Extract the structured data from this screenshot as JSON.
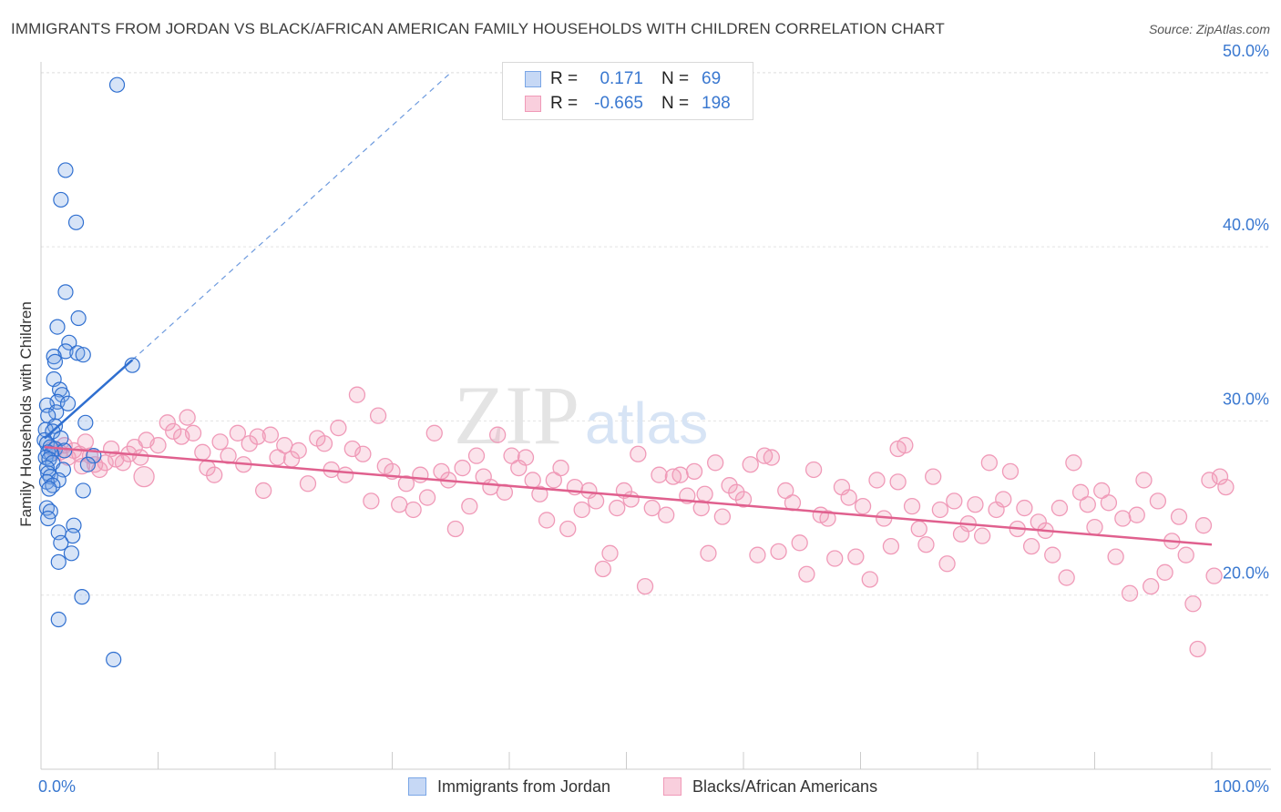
{
  "title": "IMMIGRANTS FROM JORDAN VS BLACK/AFRICAN AMERICAN FAMILY HOUSEHOLDS WITH CHILDREN CORRELATION CHART",
  "source": "Source: ZipAtlas.com",
  "watermark": {
    "zip": "ZIP",
    "atlas": "atlas"
  },
  "legend": {
    "rows": [
      {
        "r_label": "R =",
        "r_value": "0.171",
        "n_label": "N =",
        "n_value": "69",
        "color": "#7aa6e6"
      },
      {
        "r_label": "R =",
        "r_value": "-0.665",
        "n_label": "N =",
        "n_value": "198",
        "color": "#f09ab8"
      }
    ]
  },
  "bottom_legend": {
    "series_a": "Immigrants from Jordan",
    "series_b": "Blacks/African Americans"
  },
  "chart_data": {
    "type": "scatter",
    "title": "IMMIGRANTS FROM JORDAN VS BLACK/AFRICAN AMERICAN FAMILY HOUSEHOLDS WITH CHILDREN CORRELATION CHART",
    "xlabel": "",
    "ylabel": "Family Households with Children",
    "xlim": [
      0,
      100
    ],
    "ylim": [
      10,
      52
    ],
    "x_tick_labels": [
      "0.0%",
      "100.0%"
    ],
    "y_ticks": [
      20,
      30,
      40,
      50
    ],
    "y_tick_labels": [
      "20.0%",
      "30.0%",
      "40.0%",
      "50.0%"
    ],
    "colors": {
      "jordan": "#7aa6e6",
      "jordan_line": "#2f6fd0",
      "black": "#f09ab8",
      "black_line": "#e0608e"
    },
    "series": [
      {
        "name": "Immigrants from Jordan",
        "R": 0.171,
        "N": 69,
        "trend": {
          "x0": 0.3,
          "y0": 29.0,
          "x1": 7.8,
          "y1": 33.5,
          "dash_to_x": 35,
          "dash_to_y": 50.0
        },
        "points": [
          [
            6.5,
            49.3
          ],
          [
            2.1,
            44.4
          ],
          [
            1.7,
            42.7
          ],
          [
            3.0,
            41.4
          ],
          [
            2.1,
            37.4
          ],
          [
            3.2,
            35.9
          ],
          [
            1.4,
            35.4
          ],
          [
            2.4,
            34.5
          ],
          [
            2.1,
            34.0
          ],
          [
            3.1,
            33.9
          ],
          [
            3.6,
            33.8
          ],
          [
            1.1,
            33.7
          ],
          [
            1.2,
            33.4
          ],
          [
            7.8,
            33.2
          ],
          [
            1.1,
            32.4
          ],
          [
            1.6,
            31.8
          ],
          [
            1.8,
            31.5
          ],
          [
            1.4,
            31.1
          ],
          [
            2.3,
            31.0
          ],
          [
            0.5,
            30.9
          ],
          [
            1.3,
            30.5
          ],
          [
            0.6,
            30.3
          ],
          [
            3.8,
            29.9
          ],
          [
            1.2,
            29.7
          ],
          [
            0.4,
            29.5
          ],
          [
            1.0,
            29.4
          ],
          [
            1.7,
            29.0
          ],
          [
            0.3,
            28.9
          ],
          [
            0.5,
            28.7
          ],
          [
            0.8,
            28.5
          ],
          [
            1.2,
            28.4
          ],
          [
            2.0,
            28.3
          ],
          [
            0.6,
            28.2
          ],
          [
            0.9,
            28.1
          ],
          [
            4.5,
            28.0
          ],
          [
            0.4,
            27.9
          ],
          [
            0.7,
            27.8
          ],
          [
            1.0,
            27.6
          ],
          [
            4.0,
            27.5
          ],
          [
            0.5,
            27.3
          ],
          [
            1.9,
            27.2
          ],
          [
            0.6,
            27.0
          ],
          [
            0.8,
            26.8
          ],
          [
            1.5,
            26.6
          ],
          [
            0.5,
            26.5
          ],
          [
            1.0,
            26.3
          ],
          [
            0.7,
            26.1
          ],
          [
            3.6,
            26.0
          ],
          [
            0.5,
            25.0
          ],
          [
            0.8,
            24.8
          ],
          [
            0.6,
            24.4
          ],
          [
            2.8,
            24.0
          ],
          [
            1.5,
            23.6
          ],
          [
            2.7,
            23.4
          ],
          [
            1.7,
            23.0
          ],
          [
            2.6,
            22.4
          ],
          [
            1.5,
            21.9
          ],
          [
            3.5,
            19.9
          ],
          [
            1.5,
            18.6
          ],
          [
            6.2,
            16.3
          ]
        ]
      },
      {
        "name": "Blacks/African Americans",
        "R": -0.665,
        "N": 198,
        "trend": {
          "x0": 0.3,
          "y0": 28.5,
          "x1": 100,
          "y1": 22.9
        },
        "points": [
          [
            1.0,
            28.4
          ],
          [
            1.6,
            28.2
          ],
          [
            2.0,
            28.6
          ],
          [
            2.3,
            27.9
          ],
          [
            2.8,
            28.3
          ],
          [
            3.3,
            28.1
          ],
          [
            3.8,
            28.8
          ],
          [
            4.2,
            28.0
          ],
          [
            4.6,
            27.5
          ],
          [
            5.0,
            27.2
          ],
          [
            5.5,
            27.6
          ],
          [
            6.0,
            28.4
          ],
          [
            6.4,
            27.8
          ],
          [
            7.0,
            27.6
          ],
          [
            7.5,
            28.1
          ],
          [
            8.0,
            28.5
          ],
          [
            8.5,
            27.9
          ],
          [
            9.0,
            28.9
          ],
          [
            8.8,
            26.8
          ],
          [
            10.0,
            28.6
          ],
          [
            10.8,
            29.9
          ],
          [
            11.3,
            29.4
          ],
          [
            12.0,
            29.1
          ],
          [
            12.5,
            30.2
          ],
          [
            13.0,
            29.3
          ],
          [
            13.8,
            28.2
          ],
          [
            14.2,
            27.3
          ],
          [
            14.8,
            26.9
          ],
          [
            15.3,
            28.8
          ],
          [
            16.0,
            28.0
          ],
          [
            16.8,
            29.3
          ],
          [
            17.3,
            27.5
          ],
          [
            17.8,
            28.7
          ],
          [
            18.5,
            29.1
          ],
          [
            19.0,
            26.0
          ],
          [
            19.6,
            29.2
          ],
          [
            20.2,
            27.9
          ],
          [
            20.8,
            28.6
          ],
          [
            21.4,
            27.8
          ],
          [
            22.0,
            28.3
          ],
          [
            22.8,
            26.4
          ],
          [
            23.6,
            29.0
          ],
          [
            24.2,
            28.7
          ],
          [
            24.8,
            27.2
          ],
          [
            25.4,
            29.6
          ],
          [
            26.0,
            26.9
          ],
          [
            26.6,
            28.4
          ],
          [
            27.0,
            31.5
          ],
          [
            27.5,
            28.1
          ],
          [
            28.2,
            25.4
          ],
          [
            28.8,
            30.3
          ],
          [
            29.4,
            27.4
          ],
          [
            30.0,
            27.1
          ],
          [
            30.6,
            25.2
          ],
          [
            31.2,
            26.4
          ],
          [
            31.8,
            24.9
          ],
          [
            32.4,
            26.9
          ],
          [
            33.0,
            25.6
          ],
          [
            33.6,
            29.3
          ],
          [
            34.2,
            27.1
          ],
          [
            34.8,
            26.6
          ],
          [
            35.4,
            23.8
          ],
          [
            36.0,
            27.3
          ],
          [
            36.6,
            25.1
          ],
          [
            37.2,
            28.0
          ],
          [
            37.8,
            26.8
          ],
          [
            38.4,
            26.2
          ],
          [
            39.0,
            29.2
          ],
          [
            39.6,
            25.9
          ],
          [
            40.2,
            28.0
          ],
          [
            40.8,
            27.3
          ],
          [
            41.4,
            27.9
          ],
          [
            42.0,
            26.6
          ],
          [
            42.6,
            25.8
          ],
          [
            43.2,
            24.3
          ],
          [
            43.8,
            26.6
          ],
          [
            44.4,
            27.3
          ],
          [
            45.0,
            23.8
          ],
          [
            45.6,
            26.2
          ],
          [
            46.2,
            24.9
          ],
          [
            46.8,
            26.0
          ],
          [
            47.4,
            25.4
          ],
          [
            48.0,
            21.5
          ],
          [
            48.6,
            22.4
          ],
          [
            49.2,
            25.0
          ],
          [
            49.8,
            26.0
          ],
          [
            50.4,
            25.5
          ],
          [
            51.0,
            28.1
          ],
          [
            51.6,
            20.5
          ],
          [
            52.2,
            25.0
          ],
          [
            52.8,
            26.9
          ],
          [
            53.4,
            24.6
          ],
          [
            54.0,
            26.8
          ],
          [
            54.6,
            26.9
          ],
          [
            55.2,
            25.7
          ],
          [
            55.8,
            27.1
          ],
          [
            56.4,
            25.0
          ],
          [
            57.0,
            22.4
          ],
          [
            57.6,
            27.6
          ],
          [
            58.2,
            24.5
          ],
          [
            58.8,
            26.3
          ],
          [
            59.4,
            25.9
          ],
          [
            60.0,
            25.5
          ],
          [
            60.6,
            27.5
          ],
          [
            61.2,
            22.3
          ],
          [
            61.8,
            28.0
          ],
          [
            62.4,
            27.9
          ],
          [
            63.0,
            22.5
          ],
          [
            63.6,
            26.0
          ],
          [
            64.2,
            25.3
          ],
          [
            64.8,
            23.0
          ],
          [
            65.4,
            21.2
          ],
          [
            66.0,
            27.2
          ],
          [
            66.6,
            24.6
          ],
          [
            67.2,
            24.4
          ],
          [
            67.8,
            22.1
          ],
          [
            68.4,
            26.2
          ],
          [
            69.0,
            25.6
          ],
          [
            69.6,
            22.2
          ],
          [
            70.2,
            25.1
          ],
          [
            70.8,
            20.9
          ],
          [
            71.4,
            26.6
          ],
          [
            72.0,
            24.4
          ],
          [
            72.6,
            22.8
          ],
          [
            73.2,
            26.5
          ],
          [
            73.8,
            28.6
          ],
          [
            74.4,
            25.1
          ],
          [
            75.0,
            23.8
          ],
          [
            75.6,
            22.9
          ],
          [
            76.2,
            26.8
          ],
          [
            76.8,
            24.9
          ],
          [
            77.4,
            21.8
          ],
          [
            78.0,
            25.4
          ],
          [
            78.6,
            23.5
          ],
          [
            79.2,
            24.1
          ],
          [
            79.8,
            25.2
          ],
          [
            80.4,
            23.4
          ],
          [
            81.0,
            27.6
          ],
          [
            81.6,
            24.9
          ],
          [
            82.2,
            25.5
          ],
          [
            82.8,
            27.1
          ],
          [
            83.4,
            23.8
          ],
          [
            84.0,
            25.0
          ],
          [
            84.6,
            22.8
          ],
          [
            85.2,
            24.2
          ],
          [
            85.8,
            23.7
          ],
          [
            86.4,
            22.3
          ],
          [
            87.0,
            25.0
          ],
          [
            87.6,
            21.0
          ],
          [
            88.2,
            27.6
          ],
          [
            88.8,
            25.9
          ],
          [
            89.4,
            25.2
          ],
          [
            90.0,
            23.9
          ],
          [
            90.6,
            26.0
          ],
          [
            91.2,
            25.3
          ],
          [
            91.8,
            22.2
          ],
          [
            92.4,
            24.4
          ],
          [
            93.0,
            20.1
          ],
          [
            93.6,
            24.6
          ],
          [
            94.2,
            26.6
          ],
          [
            94.8,
            20.5
          ],
          [
            95.4,
            25.4
          ],
          [
            96.0,
            21.3
          ],
          [
            96.6,
            23.1
          ],
          [
            97.2,
            24.5
          ],
          [
            97.8,
            22.3
          ],
          [
            98.4,
            19.5
          ],
          [
            98.8,
            16.9
          ],
          [
            99.3,
            24.0
          ],
          [
            99.8,
            26.6
          ],
          [
            100.2,
            21.1
          ],
          [
            100.7,
            26.8
          ],
          [
            101.2,
            26.2
          ],
          [
            73.2,
            28.4
          ],
          [
            56.7,
            25.8
          ],
          [
            3.5,
            27.4
          ]
        ]
      }
    ]
  }
}
